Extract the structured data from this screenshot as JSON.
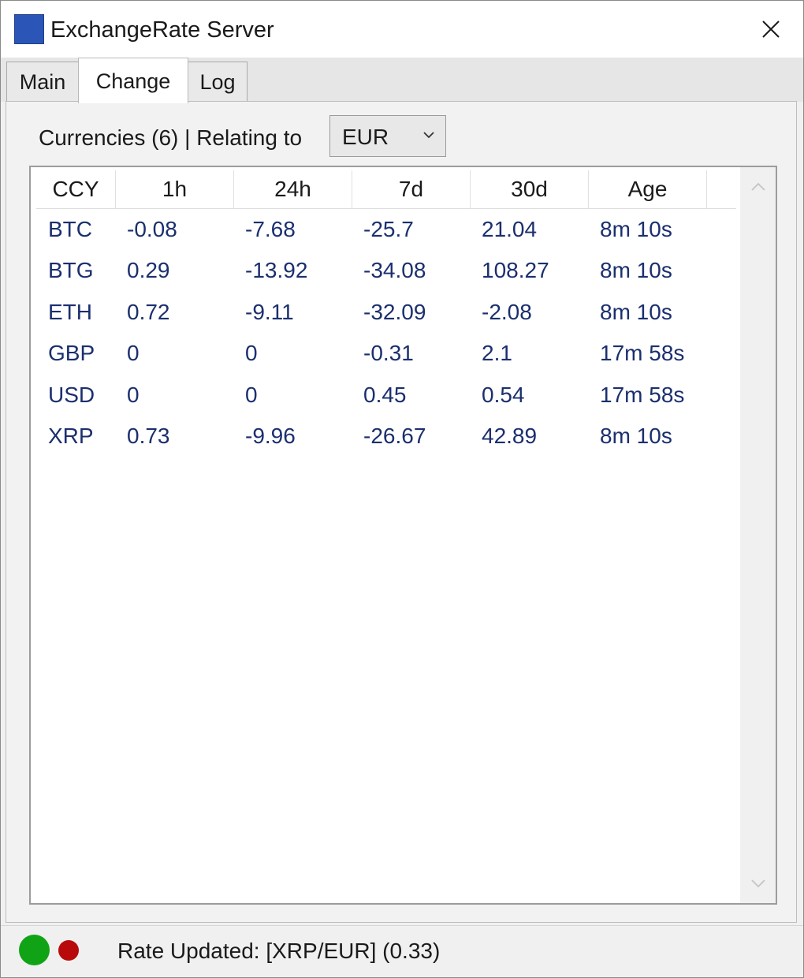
{
  "window": {
    "title": "ExchangeRate Server",
    "icon": "app-blue-square-icon",
    "close_icon": "close-icon"
  },
  "tabs": [
    {
      "label": "Main",
      "active": false
    },
    {
      "label": "Change",
      "active": true
    },
    {
      "label": "Log",
      "active": false
    }
  ],
  "toolbar": {
    "label": "Currencies (6) | Relating to",
    "base_currency": "EUR",
    "dropdown_icon": "chevron-down-icon"
  },
  "table": {
    "columns": [
      "CCY",
      "1h",
      "24h",
      "7d",
      "30d",
      "Age"
    ],
    "rows": [
      [
        "BTC",
        "-0.08",
        "-7.68",
        "-25.7",
        "21.04",
        "8m 10s"
      ],
      [
        "BTG",
        "0.29",
        "-13.92",
        "-34.08",
        "108.27",
        "8m 10s"
      ],
      [
        "ETH",
        "0.72",
        "-9.11",
        "-32.09",
        "-2.08",
        "8m 10s"
      ],
      [
        "GBP",
        "0",
        "0",
        "-0.31",
        "2.1",
        "17m 58s"
      ],
      [
        "USD",
        "0",
        "0",
        "0.45",
        "0.54",
        "17m 58s"
      ],
      [
        "XRP",
        "0.73",
        "-9.96",
        "-26.67",
        "42.89",
        "8m 10s"
      ]
    ]
  },
  "status": {
    "text": "Rate Updated: [XRP/EUR] (0.33)",
    "indicators": [
      {
        "name": "green-status-icon",
        "color": "#11a316"
      },
      {
        "name": "red-status-icon",
        "color": "#b80a0a"
      }
    ]
  },
  "colors": {
    "cell_text": "#1b2f6e",
    "icon_blue": "#2b55b6"
  }
}
